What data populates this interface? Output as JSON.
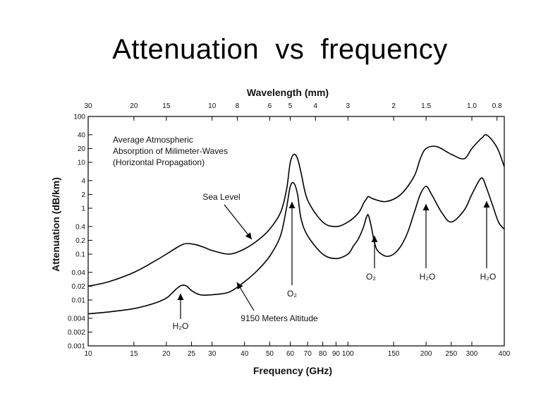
{
  "slide": {
    "title": "Attenuation  vs  frequency"
  },
  "chart_data": {
    "type": "line",
    "title": "",
    "xlabel": "Frequency (GHz)",
    "ylabel": "Attenuation (dB/km)",
    "top_axis_label": "Wavelength (mm)",
    "x_scale": "log",
    "y_scale": "log",
    "xlim": [
      10,
      400
    ],
    "ylim": [
      0.001,
      100
    ],
    "x_ticks": [
      {
        "value": 10,
        "label": "10"
      },
      {
        "value": 15,
        "label": "15"
      },
      {
        "value": 20,
        "label": "20"
      },
      {
        "value": 25,
        "label": "25"
      },
      {
        "value": 30,
        "label": "30"
      },
      {
        "value": 40,
        "label": "40"
      },
      {
        "value": 50,
        "label": "50"
      },
      {
        "value": 60,
        "label": "60"
      },
      {
        "value": 70,
        "label": "70"
      },
      {
        "value": 80,
        "label": "80"
      },
      {
        "value": 90,
        "label": "90"
      },
      {
        "value": 100,
        "label": "100"
      },
      {
        "value": 150,
        "label": "150"
      },
      {
        "value": 200,
        "label": "200"
      },
      {
        "value": 250,
        "label": "250"
      },
      {
        "value": 300,
        "label": "300"
      },
      {
        "value": 400,
        "label": "400"
      }
    ],
    "y_ticks": [
      {
        "value": 0.001,
        "label": "0.001"
      },
      {
        "value": 0.002,
        "label": "0.002"
      },
      {
        "value": 0.004,
        "label": "0.004"
      },
      {
        "value": 0.01,
        "label": "0.01"
      },
      {
        "value": 0.02,
        "label": "0.02"
      },
      {
        "value": 0.04,
        "label": "0.04"
      },
      {
        "value": 0.1,
        "label": "0.1"
      },
      {
        "value": 0.2,
        "label": "0.2"
      },
      {
        "value": 0.4,
        "label": "0.4"
      },
      {
        "value": 1,
        "label": "1"
      },
      {
        "value": 2,
        "label": "2"
      },
      {
        "value": 4,
        "label": "4"
      },
      {
        "value": 10,
        "label": "10"
      },
      {
        "value": 20,
        "label": "20"
      },
      {
        "value": 40,
        "label": "40"
      },
      {
        "value": 100,
        "label": "100"
      }
    ],
    "top_ticks": [
      {
        "mm": 30,
        "label": "30"
      },
      {
        "mm": 20,
        "label": "20"
      },
      {
        "mm": 15,
        "label": "15"
      },
      {
        "mm": 10,
        "label": "10"
      },
      {
        "mm": 8,
        "label": "8"
      },
      {
        "mm": 6,
        "label": "6"
      },
      {
        "mm": 5,
        "label": "5"
      },
      {
        "mm": 4,
        "label": "4"
      },
      {
        "mm": 3,
        "label": "3"
      },
      {
        "mm": 2,
        "label": "2"
      },
      {
        "mm": 1.5,
        "label": "1.5"
      },
      {
        "mm": 1.0,
        "label": "1.0"
      },
      {
        "mm": 0.8,
        "label": "0.8"
      }
    ],
    "legend_text": [
      "Average Atmospheric",
      "Absorption of Milimeter-Waves",
      "(Horizontal Propagation)"
    ],
    "series": [
      {
        "label": "Sea Level",
        "x": [
          10,
          12,
          15,
          18,
          20,
          22,
          23,
          24,
          26,
          28,
          30,
          35,
          40,
          45,
          50,
          55,
          58,
          60,
          62,
          64,
          66,
          70,
          80,
          90,
          100,
          110,
          115,
          118,
          120,
          125,
          140,
          160,
          180,
          190,
          200,
          220,
          250,
          280,
          300,
          320,
          330,
          340,
          360,
          380,
          400
        ],
        "y": [
          0.02,
          0.025,
          0.04,
          0.07,
          0.1,
          0.14,
          0.16,
          0.17,
          0.16,
          0.14,
          0.12,
          0.1,
          0.13,
          0.2,
          0.35,
          0.8,
          2.5,
          10,
          15,
          12,
          6,
          1.5,
          0.5,
          0.4,
          0.5,
          0.8,
          1.3,
          1.6,
          1.8,
          1.6,
          1.4,
          2.0,
          5,
          12,
          20,
          22,
          15,
          12,
          20,
          30,
          35,
          40,
          30,
          18,
          8
        ]
      },
      {
        "label": "9150 Meters Altitude",
        "x": [
          10,
          12,
          15,
          18,
          20,
          21,
          22,
          23,
          24,
          25,
          27,
          30,
          35,
          40,
          45,
          50,
          55,
          58,
          60,
          62,
          64,
          66,
          70,
          80,
          90,
          100,
          105,
          110,
          115,
          118,
          120,
          123,
          126,
          130,
          140,
          150,
          160,
          170,
          180,
          190,
          200,
          210,
          230,
          250,
          280,
          300,
          320,
          330,
          340,
          360,
          380,
          400
        ],
        "y": [
          0.005,
          0.0055,
          0.0065,
          0.0085,
          0.011,
          0.014,
          0.018,
          0.021,
          0.02,
          0.016,
          0.013,
          0.013,
          0.015,
          0.025,
          0.045,
          0.09,
          0.25,
          1,
          3,
          3.5,
          2,
          0.6,
          0.25,
          0.1,
          0.08,
          0.1,
          0.15,
          0.22,
          0.4,
          0.65,
          0.7,
          0.4,
          0.2,
          0.12,
          0.09,
          0.1,
          0.15,
          0.3,
          0.8,
          2,
          3,
          2,
          0.8,
          0.5,
          0.9,
          2,
          4,
          4.5,
          3,
          1.2,
          0.5,
          0.35
        ]
      }
    ],
    "annotations": {
      "sea_level": "Sea Level",
      "altitude": "9150 Meters Altitude",
      "h2o_22": "H₂O",
      "o2_60": "O₂",
      "o2_118": "O₂",
      "h2o_183": "H₂O",
      "h2o_325": "H₂O"
    },
    "grid": false
  }
}
